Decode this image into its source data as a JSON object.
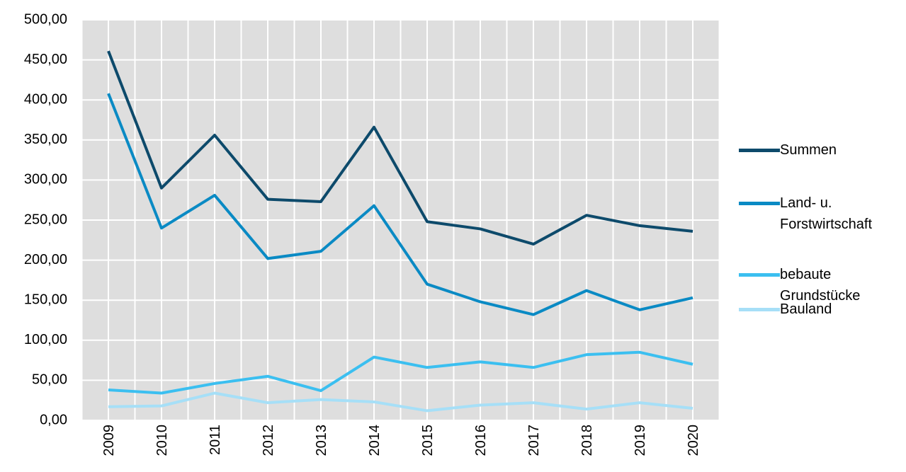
{
  "chart_data": {
    "type": "line",
    "categories": [
      "2009",
      "2010",
      "2011",
      "2012",
      "2013",
      "2014",
      "2015",
      "2016",
      "2017",
      "2018",
      "2019",
      "2020"
    ],
    "series": [
      {
        "name": "Summen",
        "color": "#0d4a6b",
        "values": [
          461,
          290,
          356,
          276,
          273,
          366,
          248,
          239,
          220,
          256,
          243,
          236
        ]
      },
      {
        "name": "Land- u. Forstwirtschaft",
        "color": "#0a8ac4",
        "values": [
          408,
          240,
          281,
          202,
          211,
          268,
          170,
          148,
          132,
          162,
          138,
          153
        ]
      },
      {
        "name": "bebaute Grundstücke",
        "color": "#3bbff0",
        "values": [
          38,
          34,
          46,
          55,
          37,
          79,
          66,
          73,
          66,
          82,
          85,
          70
        ]
      },
      {
        "name": "Bauland",
        "color": "#a6dff7",
        "values": [
          17,
          18,
          34,
          22,
          26,
          23,
          12,
          19,
          22,
          14,
          22,
          15
        ]
      }
    ],
    "ylim": [
      0,
      500
    ],
    "yticks": [
      {
        "value": 0,
        "label": "0,00"
      },
      {
        "value": 50,
        "label": "50,00"
      },
      {
        "value": 100,
        "label": "100,00"
      },
      {
        "value": 150,
        "label": "150,00"
      },
      {
        "value": 200,
        "label": "200,00"
      },
      {
        "value": 250,
        "label": "250,00"
      },
      {
        "value": 300,
        "label": "300,00"
      },
      {
        "value": 350,
        "label": "350,00"
      },
      {
        "value": 400,
        "label": "400,00"
      },
      {
        "value": 450,
        "label": "450,00"
      },
      {
        "value": 500,
        "label": "500,00"
      }
    ],
    "grid": true,
    "legend": "right"
  }
}
